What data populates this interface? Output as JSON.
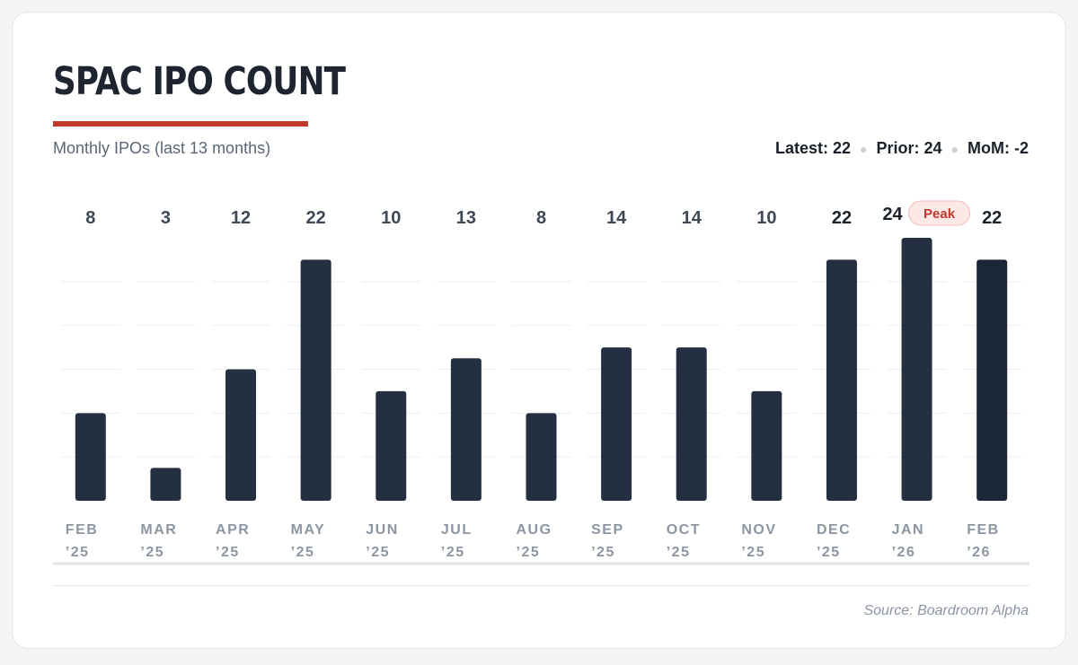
{
  "header": {
    "title": "SPAC IPO COUNT",
    "subtitle": "Monthly IPOs (last 13 months)"
  },
  "stats": {
    "latest": "Latest: 22",
    "prior": "Prior: 24",
    "mom": "MoM: -2"
  },
  "footer": {
    "source": "Source: Boardroom Alpha"
  },
  "colors": {
    "bar": "#243042",
    "bar_latest": "#1b2636",
    "accent": "#c0392b",
    "peak_badge_bg": "#fde8e8",
    "peak_badge_text": "#c0392b"
  },
  "chart_data": {
    "type": "bar",
    "title": "SPAC IPO COUNT",
    "subtitle": "Monthly IPOs (last 13 months)",
    "categories": [
      [
        "FEB",
        "’25"
      ],
      [
        "MAR",
        "’25"
      ],
      [
        "APR",
        "’25"
      ],
      [
        "MAY",
        "’25"
      ],
      [
        "JUN",
        "’25"
      ],
      [
        "JUL",
        "’25"
      ],
      [
        "AUG",
        "’25"
      ],
      [
        "SEP",
        "’25"
      ],
      [
        "OCT",
        "’25"
      ],
      [
        "NOV",
        "’25"
      ],
      [
        "DEC",
        "’25"
      ],
      [
        "JAN",
        "’26"
      ],
      [
        "FEB",
        "’26"
      ]
    ],
    "values": [
      8,
      3,
      12,
      22,
      10,
      13,
      8,
      14,
      14,
      10,
      22,
      24,
      22
    ],
    "ylim": [
      0,
      24
    ],
    "grid": true,
    "annotations": [
      {
        "category_index": 11,
        "text": "Peak"
      }
    ]
  }
}
